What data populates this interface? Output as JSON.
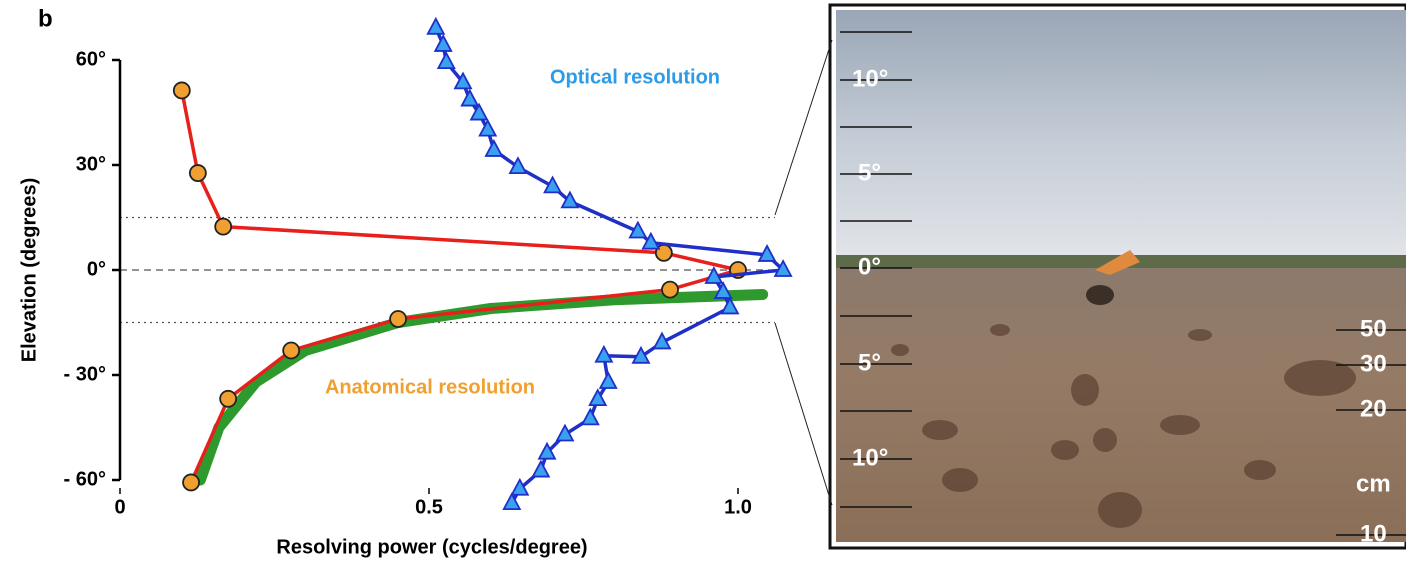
{
  "chart_data": {
    "type": "line",
    "panel_label": "b",
    "x_label": "Resolving power (cycles/degree)",
    "y_label": "Elevation (degrees)",
    "xlim": [
      0,
      1
    ],
    "ylim": [
      -60,
      60
    ],
    "xticks": [
      0,
      0.5,
      {
        "value": 1,
        "label": "1.0"
      }
    ],
    "yticks": [
      {
        "value": 60,
        "label": "60°"
      },
      {
        "value": 30,
        "label": "30°"
      },
      {
        "value": 0,
        "label": "0°"
      },
      {
        "value": -30,
        "label": "- 30°"
      },
      {
        "value": -60,
        "label": "- 60°"
      }
    ],
    "reference_lines": [
      {
        "value": 15,
        "style": "dotted"
      },
      {
        "value": 0,
        "style": "dashed"
      },
      {
        "value": -15,
        "style": "dotted"
      }
    ],
    "series": [
      {
        "name": "Anatomical resolution",
        "color": "#e8201c",
        "marker": "circle",
        "marker_color": "#f0a030",
        "label_color": "#f0a030",
        "x": [
          0.1,
          0.126,
          0.167,
          0.88,
          1.0,
          0.89,
          0.45,
          0.277,
          0.175,
          0.115
        ],
        "values": [
          51.3,
          27.7,
          12.4,
          4.9,
          0,
          -5.6,
          -14,
          -23,
          -36.8,
          -60.7
        ]
      },
      {
        "name": "Optical resolution",
        "color": "#1f2fc8",
        "marker": "triangle",
        "marker_color": "#3aa0f0",
        "label_color": "#2c9be8",
        "x": [
          0.511,
          0.523,
          0.528,
          0.555,
          0.566,
          0.581,
          0.595,
          0.605,
          0.644,
          0.7,
          0.728,
          0.838,
          0.859,
          1.047,
          1.073,
          0.961,
          0.976,
          0.987,
          0.877,
          0.843,
          0.783,
          0.79,
          0.773,
          0.761,
          0.72,
          0.691,
          0.681,
          0.647,
          0.634
        ],
        "values": [
          69.2,
          64.3,
          59.4,
          53.6,
          48.7,
          44.7,
          40.1,
          34.3,
          29.4,
          23.9,
          19.6,
          11,
          7.8,
          4.3,
          0,
          -2,
          -6.3,
          -10.7,
          -20.7,
          -24.8,
          -24.5,
          -32,
          -36.9,
          -42.4,
          -47,
          -52.2,
          -57.3,
          -62.5,
          -66.6
        ]
      },
      {
        "color": "#2e9a2e",
        "marker": "none",
        "x": [
          0.13,
          0.16,
          0.22,
          0.3,
          0.45,
          0.6,
          0.8,
          1.04
        ],
        "values": [
          -60,
          -45,
          -32,
          -23,
          -15,
          -11,
          -8.5,
          -7
        ]
      }
    ]
  },
  "photo": {
    "elevation_labels": [
      "10°",
      "5°",
      "0°",
      "5°",
      "10°"
    ],
    "distance_labels": [
      "50",
      "30",
      "20",
      "10"
    ],
    "distance_unit": "cm"
  }
}
